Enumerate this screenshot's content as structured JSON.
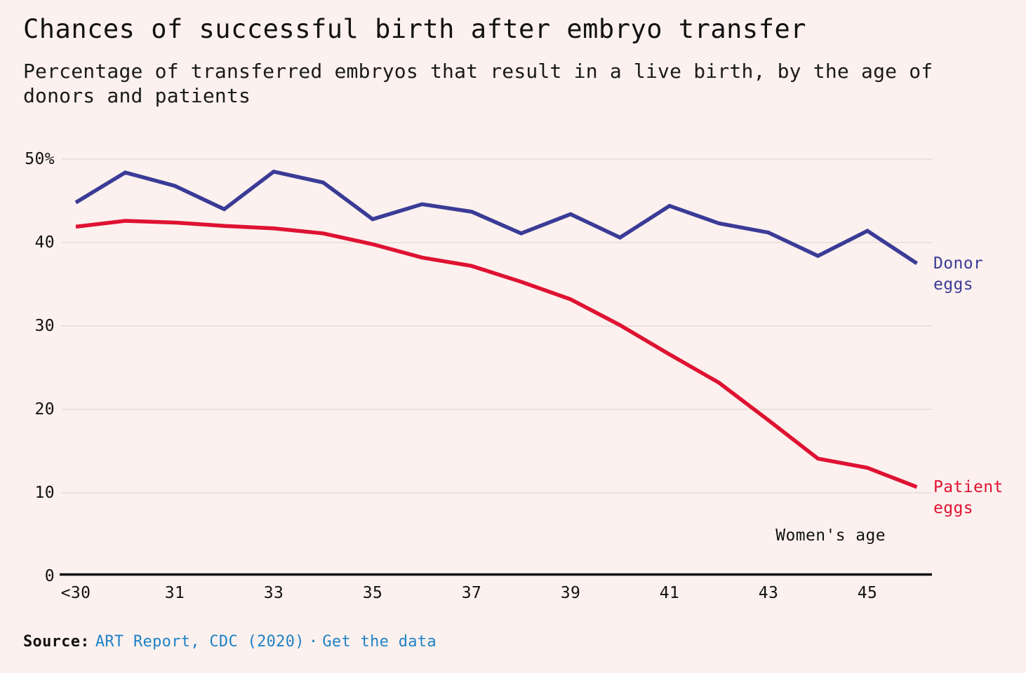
{
  "page": {
    "background_color": "#fcf1ee",
    "title": "Chances of successful birth after embryo transfer",
    "subtitle": "Percentage of transferred embryos that result in a live birth, by the age of donors and patients",
    "source_prefix": "Source:",
    "source_link": "ART Report, CDC (2020)",
    "separator": "·",
    "get_data_link": "Get the data",
    "link_color": "#1e82c6"
  },
  "style": {
    "grid_color": "#ddd8d4",
    "axis_color": "#111111",
    "text_color": "#121212"
  },
  "chart_data": {
    "type": "line",
    "title": "Chances of successful birth after embryo transfer",
    "subtitle": "Percentage of transferred embryos that result in a live birth, by the age of donors and patients",
    "xlabel": "Women's age",
    "ylabel": "",
    "x": [
      "<30",
      "30",
      "31",
      "32",
      "33",
      "34",
      "35",
      "36",
      "37",
      "38",
      "39",
      "40",
      "41",
      "42",
      "43",
      "44",
      "45",
      "46"
    ],
    "x_tick_labels": [
      {
        "index": 0,
        "label": "<30"
      },
      {
        "index": 2,
        "label": "31"
      },
      {
        "index": 4,
        "label": "33"
      },
      {
        "index": 6,
        "label": "35"
      },
      {
        "index": 8,
        "label": "37"
      },
      {
        "index": 10,
        "label": "39"
      },
      {
        "index": 12,
        "label": "41"
      },
      {
        "index": 14,
        "label": "43"
      },
      {
        "index": 16,
        "label": "45"
      }
    ],
    "y_ticks": [
      {
        "value": 50,
        "label": "50%"
      },
      {
        "value": 40,
        "label": "40"
      },
      {
        "value": 30,
        "label": "30"
      },
      {
        "value": 20,
        "label": "20"
      },
      {
        "value": 10,
        "label": "10"
      },
      {
        "value": 0,
        "label": "0"
      }
    ],
    "ylim": [
      0,
      52
    ],
    "grid": "horizontal",
    "legend_position": "right-of-line-ends",
    "series": [
      {
        "name": "Donor eggs",
        "color": "#3b3b97",
        "values": [
          44.8,
          48.4,
          46.8,
          44.0,
          48.5,
          47.2,
          42.8,
          44.6,
          43.7,
          41.1,
          43.4,
          40.6,
          44.4,
          42.3,
          41.2,
          38.4,
          41.4,
          37.5
        ]
      },
      {
        "name": "Patient eggs",
        "color": "#df1232",
        "values": [
          41.9,
          42.6,
          42.4,
          42.0,
          41.7,
          41.1,
          39.8,
          38.2,
          37.2,
          35.3,
          33.2,
          30.1,
          26.6,
          23.2,
          18.7,
          14.1,
          13.0,
          10.7
        ]
      }
    ]
  }
}
